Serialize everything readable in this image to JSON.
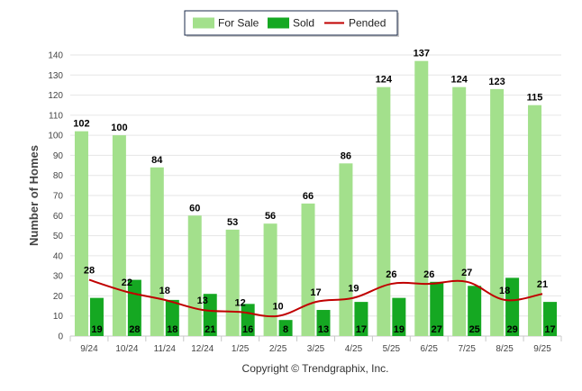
{
  "chart_data": {
    "type": "bar",
    "title": "",
    "xlabel": "",
    "ylabel": "Number of Homes",
    "ylim": [
      0,
      140
    ],
    "yticks": [
      0,
      10,
      20,
      30,
      40,
      50,
      60,
      70,
      80,
      90,
      100,
      110,
      120,
      130,
      140
    ],
    "grid": true,
    "legend_position": "top-center",
    "categories": [
      "9/24",
      "10/24",
      "11/24",
      "12/24",
      "1/25",
      "2/25",
      "3/25",
      "4/25",
      "5/25",
      "6/25",
      "7/25",
      "8/25",
      "9/25"
    ],
    "series": [
      {
        "name": "For Sale",
        "kind": "bar",
        "color": "#a3e08c",
        "values": [
          102,
          100,
          84,
          60,
          53,
          56,
          66,
          86,
          124,
          137,
          124,
          123,
          115
        ]
      },
      {
        "name": "Sold",
        "kind": "bar",
        "color": "#15a822",
        "values": [
          19,
          28,
          18,
          21,
          16,
          8,
          13,
          17,
          19,
          27,
          25,
          29,
          17
        ]
      },
      {
        "name": "Pended",
        "kind": "line",
        "color": "#c00000",
        "values": [
          28,
          22,
          18,
          13,
          12,
          10,
          17,
          19,
          26,
          26,
          27,
          18,
          21
        ]
      }
    ],
    "footer": "Copyright © Trendgraphix, Inc."
  }
}
